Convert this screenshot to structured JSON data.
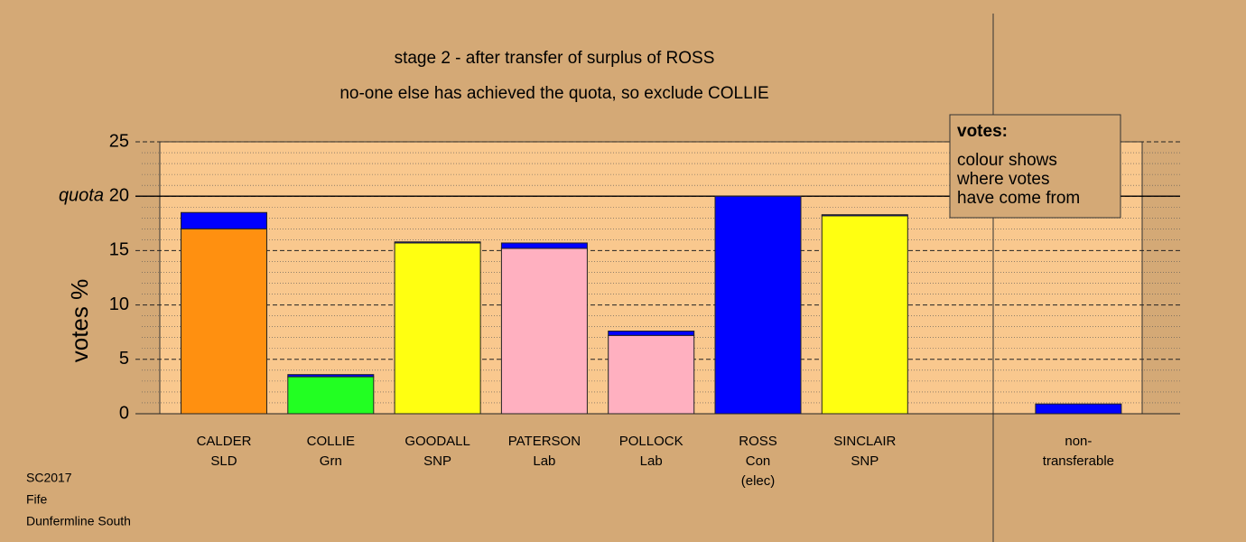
{
  "chart_data": {
    "type": "stacked_bar",
    "title": "stage 2 - after transfer of surplus of ROSS",
    "subtitle": "no-one else has achieved the quota, so exclude COLLIE",
    "ylabel": "votes %",
    "categories": [
      [
        "CALDER",
        "SLD"
      ],
      [
        "COLLIE",
        "Grn"
      ],
      [
        "GOODALL",
        "SNP"
      ],
      [
        "PATERSON",
        "Lab"
      ],
      [
        "POLLOCK",
        "Lab"
      ],
      [
        "ROSS",
        "Con",
        "(elec)"
      ],
      [
        "SINCLAIR",
        "SNP"
      ],
      [
        "non-",
        "transferable"
      ]
    ],
    "series": [
      {
        "colors": [
          "#ff9010",
          "#22ff22",
          "#ffff11",
          "#ffb0c0",
          "#ffb0c0",
          "#0000ff",
          "#ffff11",
          null
        ],
        "values": [
          17.0,
          3.4,
          15.7,
          15.2,
          7.2,
          20.0,
          18.2,
          null
        ]
      },
      {
        "color": "#0000ff",
        "values": [
          1.5,
          0.2,
          0.1,
          0.5,
          0.4,
          null,
          0.1,
          0.9
        ]
      }
    ],
    "ylim": [
      0,
      25
    ],
    "yticks": [
      0,
      5,
      10,
      15,
      20,
      25
    ],
    "minor_yticks": [
      1,
      2,
      3,
      4,
      6,
      7,
      8,
      9,
      11,
      12,
      13,
      14,
      16,
      17,
      18,
      19,
      21,
      22,
      23,
      24
    ],
    "quota": {
      "value": 20,
      "label": "quota"
    },
    "legend": {
      "title": "votes:",
      "lines": [
        "colour shows",
        "where votes",
        "have come from"
      ]
    },
    "notes": [
      "SC2017",
      "Fife",
      "Dunfermline South"
    ]
  }
}
